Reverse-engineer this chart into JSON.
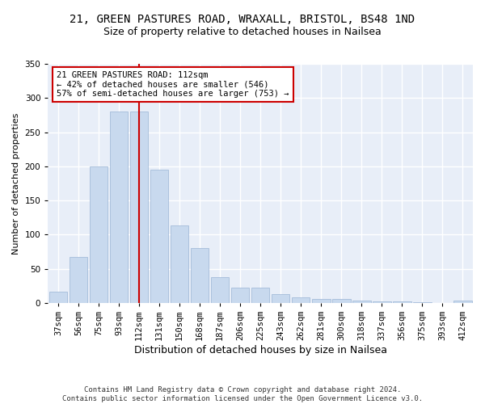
{
  "title": "21, GREEN PASTURES ROAD, WRAXALL, BRISTOL, BS48 1ND",
  "subtitle": "Size of property relative to detached houses in Nailsea",
  "xlabel": "Distribution of detached houses by size in Nailsea",
  "ylabel": "Number of detached properties",
  "categories": [
    "37sqm",
    "56sqm",
    "75sqm",
    "93sqm",
    "112sqm",
    "131sqm",
    "150sqm",
    "168sqm",
    "187sqm",
    "206sqm",
    "225sqm",
    "243sqm",
    "262sqm",
    "281sqm",
    "300sqm",
    "318sqm",
    "337sqm",
    "356sqm",
    "375sqm",
    "393sqm",
    "412sqm"
  ],
  "values": [
    16,
    67,
    200,
    280,
    280,
    195,
    113,
    80,
    38,
    22,
    22,
    13,
    8,
    6,
    6,
    3,
    2,
    2,
    1,
    0,
    3
  ],
  "bar_color": "#c8d9ee",
  "bar_edge_color": "#9ab4d4",
  "vline_x": 4,
  "vline_color": "#cc0000",
  "annotation_text": "21 GREEN PASTURES ROAD: 112sqm\n← 42% of detached houses are smaller (546)\n57% of semi-detached houses are larger (753) →",
  "annotation_box_color": "#ffffff",
  "annotation_box_edge": "#cc0000",
  "ylim": [
    0,
    350
  ],
  "yticks": [
    0,
    50,
    100,
    150,
    200,
    250,
    300,
    350
  ],
  "background_color": "#e8eef8",
  "grid_color": "#ffffff",
  "footer": "Contains HM Land Registry data © Crown copyright and database right 2024.\nContains public sector information licensed under the Open Government Licence v3.0.",
  "title_fontsize": 10,
  "subtitle_fontsize": 9,
  "xlabel_fontsize": 9,
  "ylabel_fontsize": 8,
  "tick_fontsize": 7.5,
  "annotation_fontsize": 7.5,
  "footer_fontsize": 6.5
}
